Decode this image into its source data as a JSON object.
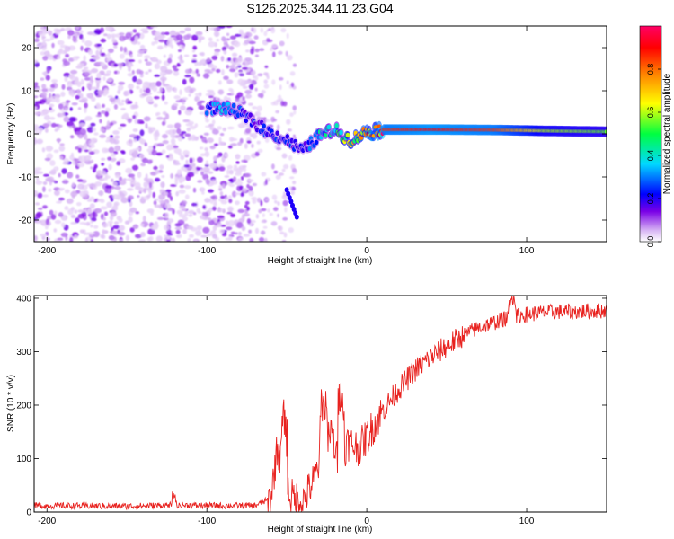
{
  "title": "S126.2025.344.11.23.G04",
  "chart_data": [
    {
      "type": "heatmap",
      "name": "spectrogram",
      "xlabel": "Height of straight line (km)",
      "ylabel": "Frequency (Hz)",
      "xlim": [
        -208,
        150
      ],
      "ylim": [
        -25,
        25
      ],
      "xticks": [
        -200,
        -100,
        0,
        100
      ],
      "yticks": [
        -20,
        -10,
        0,
        10,
        20
      ],
      "colorbar": {
        "label": "Normalized spectral amplitude",
        "range": [
          0,
          1
        ],
        "ticks": [
          0.0,
          0.2,
          0.4,
          0.6,
          0.8
        ],
        "colors": [
          "#ffffff",
          "#d9b8f4",
          "#7a00e6",
          "#0000ff",
          "#00d8ff",
          "#00ff40",
          "#ffff00",
          "#ff8000",
          "#ff0000",
          "#ff0066"
        ]
      },
      "features": {
        "noise_region_x": [
          -208,
          -70
        ],
        "sparse_noise_x": [
          -70,
          -45
        ],
        "main_ridge": [
          {
            "x": -100,
            "y": 6.0,
            "amp": 0.25
          },
          {
            "x": -90,
            "y": 6.0,
            "amp": 0.3
          },
          {
            "x": -80,
            "y": 5.0,
            "amp": 0.22
          },
          {
            "x": -72,
            "y": 3.0,
            "amp": 0.2
          },
          {
            "x": -62,
            "y": 0.5,
            "amp": 0.22
          },
          {
            "x": -50,
            "y": -1.5,
            "amp": 0.2
          },
          {
            "x": -40,
            "y": -4.0,
            "amp": 0.18
          },
          {
            "x": -30,
            "y": -0.5,
            "amp": 0.35
          },
          {
            "x": -20,
            "y": 1.0,
            "amp": 0.4
          },
          {
            "x": -10,
            "y": -1.5,
            "amp": 0.55
          },
          {
            "x": 0,
            "y": 0.5,
            "amp": 0.7
          },
          {
            "x": 10,
            "y": 1.0,
            "amp": 0.85
          },
          {
            "x": 40,
            "y": 1.0,
            "amp": 0.9
          },
          {
            "x": 80,
            "y": 0.9,
            "amp": 0.85
          },
          {
            "x": 110,
            "y": 0.7,
            "amp": 0.6
          },
          {
            "x": 150,
            "y": 0.5,
            "amp": 0.55
          }
        ],
        "side_blob": {
          "x": -50,
          "y": -13,
          "amp": 0.2
        }
      }
    },
    {
      "type": "line",
      "name": "snr",
      "xlabel": "Height of straight line (km)",
      "ylabel": "SNR (10 * v/v)",
      "xlim": [
        -208,
        150
      ],
      "ylim": [
        0,
        405
      ],
      "xticks": [
        -200,
        -100,
        0,
        100
      ],
      "yticks": [
        0,
        100,
        200,
        300,
        400
      ],
      "color": "#e8221f",
      "trend": {
        "x": [
          -208,
          -150,
          -120,
          -100,
          -70,
          -60,
          -56,
          -52,
          -48,
          -40,
          -33,
          -28,
          -22,
          -18,
          -12,
          -5,
          0,
          10,
          20,
          30,
          40,
          50,
          60,
          70,
          80,
          90,
          100,
          110,
          120,
          130,
          140,
          150
        ],
        "y": [
          12,
          11,
          13,
          12,
          12,
          25,
          120,
          70,
          30,
          20,
          60,
          110,
          150,
          90,
          130,
          120,
          140,
          190,
          230,
          265,
          290,
          310,
          330,
          345,
          355,
          365,
          370,
          373,
          375,
          375,
          376,
          377
        ]
      },
      "spikes": [
        {
          "x": -120,
          "y": 35
        },
        {
          "x": -52,
          "y": 178
        },
        {
          "x": -27,
          "y": 210
        },
        {
          "x": -16,
          "y": 215
        },
        {
          "x": 90,
          "y": 402
        },
        {
          "x": 92,
          "y": 395
        }
      ]
    }
  ]
}
